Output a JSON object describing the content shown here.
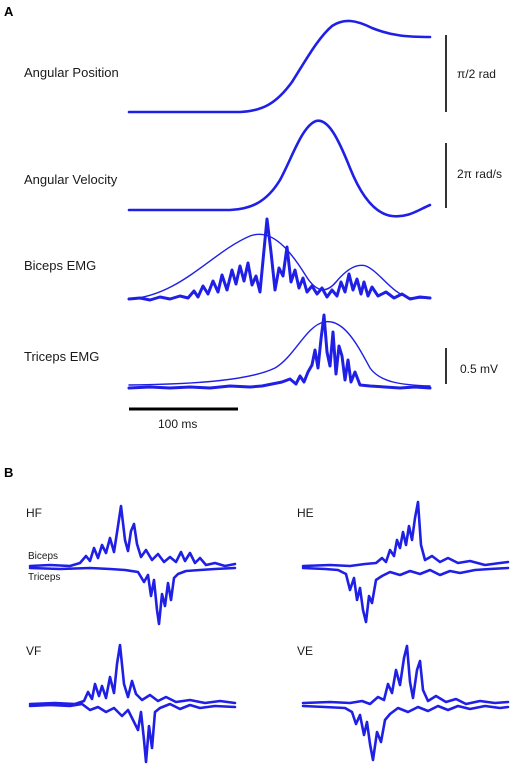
{
  "panel_a": {
    "letter": "A",
    "rows": [
      {
        "label": "Angular Position",
        "scale": "π/2 rad"
      },
      {
        "label": "Angular Velocity",
        "scale": "2π rad/s"
      },
      {
        "label": "Biceps EMG",
        "scale": ""
      },
      {
        "label": "Triceps EMG",
        "scale": "0.5 mV"
      }
    ],
    "time_bar": "100 ms"
  },
  "panel_b": {
    "letter": "B",
    "subplots": [
      {
        "label": "HF"
      },
      {
        "label": "HE"
      },
      {
        "label": "VF"
      },
      {
        "label": "VE"
      }
    ],
    "trace_labels": {
      "upper": "Biceps",
      "lower": "Triceps"
    }
  },
  "colors": {
    "trace": "#1f1fe6",
    "scale_bar": "#000000"
  }
}
